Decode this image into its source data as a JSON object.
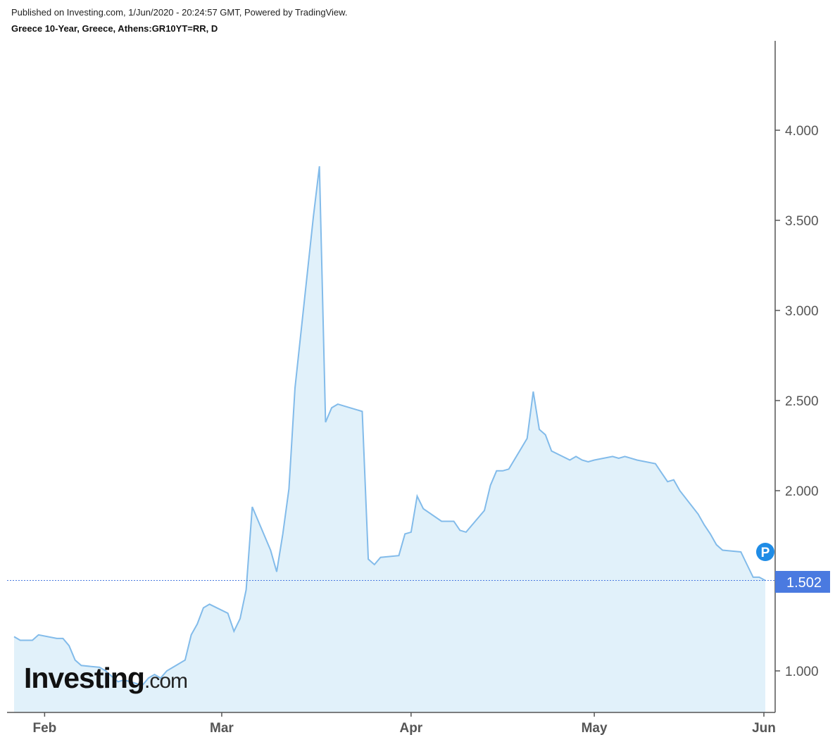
{
  "header": {
    "published": "Published on Investing.com, 1/Jun/2020 - 20:24:57 GMT, Powered by TradingView.",
    "instrument": "Greece 10-Year, Greece, Athens:GR10YT=RR, D"
  },
  "logo": {
    "main": "Investing",
    "suffix": ".com"
  },
  "price_marker": {
    "icon": "P",
    "label": "1.502"
  },
  "colors": {
    "line": "#82bbea",
    "fill": "#e1f1fa",
    "marker_bg": "#4a7ae0",
    "p_icon": "#1f8ce6",
    "axis": "#555555"
  },
  "chart_data": {
    "type": "area",
    "title": "",
    "xlabel": "",
    "ylabel": "",
    "ylim": [
      0.8,
      4.5
    ],
    "yticks": [
      1.0,
      1.5,
      2.0,
      2.5,
      3.0,
      3.5,
      4.0
    ],
    "ytick_labels": [
      "1.000",
      "2.000",
      "2.500",
      "3.000",
      "3.500",
      "4.000"
    ],
    "ytick_values": [
      1.0,
      2.0,
      2.5,
      3.0,
      3.5,
      4.0
    ],
    "xtick_labels": [
      "Feb",
      "Mar",
      "Apr",
      "May",
      "Jun"
    ],
    "xtick_dates": [
      "2020-02-01",
      "2020-03-01",
      "2020-04-01",
      "2020-05-01",
      "2020-06-01"
    ],
    "last_value": 1.502,
    "series": [
      {
        "points": [
          [
            "2020-01-27",
            1.19
          ],
          [
            "2020-01-28",
            1.17
          ],
          [
            "2020-01-29",
            1.17
          ],
          [
            "2020-01-30",
            1.17
          ],
          [
            "2020-01-31",
            1.2
          ],
          [
            "2020-02-03",
            1.18
          ],
          [
            "2020-02-04",
            1.18
          ],
          [
            "2020-02-05",
            1.14
          ],
          [
            "2020-02-06",
            1.06
          ],
          [
            "2020-02-07",
            1.03
          ],
          [
            "2020-02-10",
            1.02
          ],
          [
            "2020-02-11",
            1.0
          ],
          [
            "2020-02-12",
            0.97
          ],
          [
            "2020-02-13",
            0.94
          ],
          [
            "2020-02-14",
            0.95
          ],
          [
            "2020-02-17",
            0.92
          ],
          [
            "2020-02-18",
            0.96
          ],
          [
            "2020-02-19",
            0.98
          ],
          [
            "2020-02-20",
            0.96
          ],
          [
            "2020-02-21",
            1.0
          ],
          [
            "2020-02-24",
            1.06
          ],
          [
            "2020-02-25",
            1.2
          ],
          [
            "2020-02-26",
            1.26
          ],
          [
            "2020-02-27",
            1.35
          ],
          [
            "2020-02-28",
            1.37
          ],
          [
            "2020-03-02",
            1.32
          ],
          [
            "2020-03-03",
            1.22
          ],
          [
            "2020-03-04",
            1.29
          ],
          [
            "2020-03-05",
            1.45
          ],
          [
            "2020-03-06",
            1.91
          ],
          [
            "2020-03-09",
            1.67
          ],
          [
            "2020-03-10",
            1.55
          ],
          [
            "2020-03-11",
            1.76
          ],
          [
            "2020-03-12",
            2.01
          ],
          [
            "2020-03-13",
            2.57
          ],
          [
            "2020-03-16",
            3.52
          ],
          [
            "2020-03-17",
            3.8
          ],
          [
            "2020-03-18",
            2.38
          ],
          [
            "2020-03-19",
            2.46
          ],
          [
            "2020-03-20",
            2.48
          ],
          [
            "2020-03-23",
            2.45
          ],
          [
            "2020-03-24",
            2.44
          ],
          [
            "2020-03-25",
            1.62
          ],
          [
            "2020-03-26",
            1.59
          ],
          [
            "2020-03-27",
            1.63
          ],
          [
            "2020-03-30",
            1.64
          ],
          [
            "2020-03-31",
            1.76
          ],
          [
            "2020-04-01",
            1.77
          ],
          [
            "2020-04-02",
            1.97
          ],
          [
            "2020-04-03",
            1.9
          ],
          [
            "2020-04-06",
            1.83
          ],
          [
            "2020-04-07",
            1.83
          ],
          [
            "2020-04-08",
            1.83
          ],
          [
            "2020-04-09",
            1.78
          ],
          [
            "2020-04-10",
            1.77
          ],
          [
            "2020-04-13",
            1.89
          ],
          [
            "2020-04-14",
            2.03
          ],
          [
            "2020-04-15",
            2.11
          ],
          [
            "2020-04-16",
            2.11
          ],
          [
            "2020-04-17",
            2.12
          ],
          [
            "2020-04-20",
            2.29
          ],
          [
            "2020-04-21",
            2.55
          ],
          [
            "2020-04-22",
            2.34
          ],
          [
            "2020-04-23",
            2.31
          ],
          [
            "2020-04-24",
            2.22
          ],
          [
            "2020-04-27",
            2.17
          ],
          [
            "2020-04-28",
            2.19
          ],
          [
            "2020-04-29",
            2.17
          ],
          [
            "2020-04-30",
            2.16
          ],
          [
            "2020-05-01",
            2.17
          ],
          [
            "2020-05-04",
            2.19
          ],
          [
            "2020-05-05",
            2.18
          ],
          [
            "2020-05-06",
            2.19
          ],
          [
            "2020-05-07",
            2.18
          ],
          [
            "2020-05-08",
            2.17
          ],
          [
            "2020-05-11",
            2.15
          ],
          [
            "2020-05-12",
            2.1
          ],
          [
            "2020-05-13",
            2.05
          ],
          [
            "2020-05-14",
            2.06
          ],
          [
            "2020-05-15",
            2.0
          ],
          [
            "2020-05-18",
            1.87
          ],
          [
            "2020-05-19",
            1.81
          ],
          [
            "2020-05-20",
            1.76
          ],
          [
            "2020-05-21",
            1.7
          ],
          [
            "2020-05-22",
            1.67
          ],
          [
            "2020-05-25",
            1.66
          ],
          [
            "2020-05-26",
            1.59
          ],
          [
            "2020-05-27",
            1.52
          ],
          [
            "2020-05-28",
            1.52
          ],
          [
            "2020-05-29",
            1.502
          ]
        ]
      }
    ]
  }
}
